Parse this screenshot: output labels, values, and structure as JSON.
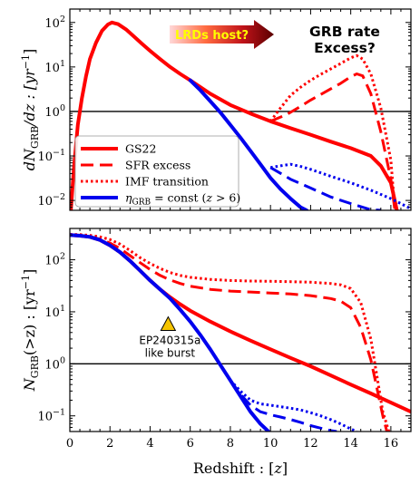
{
  "colors": {
    "red": "#ff0000",
    "blue": "#0000ee",
    "black": "#000000",
    "triangle": "#f5c400"
  },
  "chart_data": [
    {
      "type": "line",
      "panel": "top",
      "ylabel": "dN_GRB/dz : [yr^-1]",
      "ylabel_parts": {
        "main": "dN",
        "sub": "GRB",
        "rest": "/dz : [yr",
        "sup": "−1",
        "end": "]"
      },
      "yscale": "log",
      "xlim": [
        0,
        17
      ],
      "ylim": [
        0.006,
        200
      ],
      "yticks": [
        {
          "value": 0.01,
          "base": "10",
          "exp": "−2"
        },
        {
          "value": 0.1,
          "base": "10",
          "exp": "−1"
        },
        {
          "value": 1,
          "base": "10",
          "exp": "0"
        },
        {
          "value": 10,
          "base": "10",
          "exp": "1"
        },
        {
          "value": 100,
          "base": "10",
          "exp": "2"
        }
      ],
      "hline": 1,
      "annotations": {
        "arrow_label": "LRDs host?",
        "question_line1": "GRB rate",
        "question_line2": "Excess?"
      },
      "legend": [
        {
          "label": "GS22",
          "color": "#ff0000",
          "style": "solid"
        },
        {
          "label": "SFR excess",
          "color": "#ff0000",
          "style": "dashed"
        },
        {
          "label": "IMF transition",
          "color": "#ff0000",
          "style": "dotted"
        },
        {
          "label": "η_GRB = const (z > 6)",
          "color": "#0000ee",
          "style": "solid",
          "parts": {
            "eta": "η",
            "sub": "GRB",
            "rest": " = const (",
            "z": "z",
            "tail": " > 6)"
          }
        }
      ],
      "series": [
        {
          "name": "GS22",
          "color": "#ff0000",
          "style": "solid",
          "width": 4,
          "x": [
            0.05,
            0.2,
            0.4,
            0.6,
            0.8,
            1.0,
            1.3,
            1.6,
            1.9,
            2.1,
            2.4,
            2.8,
            3.2,
            3.6,
            4.0,
            4.5,
            5.0,
            5.5,
            6.0,
            7.0,
            8.0,
            9.0,
            10.0,
            11.0,
            12.0,
            13.0,
            14.0,
            15.0,
            15.5,
            16.0,
            16.3
          ],
          "y": [
            0.006,
            0.05,
            0.5,
            2,
            6,
            15,
            35,
            65,
            90,
            100,
            92,
            70,
            48,
            33,
            23,
            15,
            10,
            7,
            5,
            2.5,
            1.4,
            0.9,
            0.6,
            0.42,
            0.3,
            0.21,
            0.15,
            0.1,
            0.06,
            0.025,
            0.006
          ]
        },
        {
          "name": "SFR excess",
          "color": "#ff0000",
          "style": "dashed",
          "width": 3,
          "x": [
            10,
            10.8,
            11.5,
            12.0,
            12.5,
            13.0,
            13.5,
            14.0,
            14.3,
            14.6,
            15.0,
            15.5,
            16.0,
            16.2
          ],
          "y": [
            0.6,
            0.85,
            1.3,
            1.8,
            2.4,
            3.2,
            4.3,
            6,
            7,
            6.3,
            2.5,
            0.35,
            0.03,
            0.006
          ]
        },
        {
          "name": "IMF transition",
          "color": "#ff0000",
          "style": "dotted",
          "width": 3,
          "x": [
            10,
            10.5,
            11.0,
            11.5,
            12.0,
            12.5,
            13.0,
            13.5,
            14.0,
            14.3,
            14.6,
            15.0,
            15.5,
            16.0,
            16.2
          ],
          "y": [
            0.6,
            1.2,
            2.3,
            3.5,
            5,
            6.8,
            9,
            12,
            16,
            18,
            15,
            7,
            1.2,
            0.08,
            0.006
          ]
        },
        {
          "name": "η_GRB = const (z > 6)",
          "color": "#0000ee",
          "style": "solid",
          "width": 4,
          "x": [
            6.0,
            6.5,
            7.0,
            7.5,
            8.0,
            8.5,
            9.0,
            9.5,
            10.0,
            10.5,
            11.0,
            11.5,
            11.8
          ],
          "y": [
            5,
            3,
            1.7,
            0.95,
            0.5,
            0.26,
            0.13,
            0.065,
            0.032,
            0.018,
            0.011,
            0.007,
            0.006
          ]
        },
        {
          "name": "blue dashed",
          "color": "#0000ee",
          "style": "dashed",
          "width": 3,
          "x": [
            10,
            11,
            12,
            13,
            14,
            15,
            15.5
          ],
          "y": [
            0.055,
            0.03,
            0.019,
            0.012,
            0.0085,
            0.0062,
            0.006
          ]
        },
        {
          "name": "blue dotted",
          "color": "#0000ee",
          "style": "dotted",
          "width": 3,
          "x": [
            10,
            10.5,
            11.0,
            11.5,
            12,
            13,
            14,
            15,
            16,
            16.5,
            17
          ],
          "y": [
            0.055,
            0.06,
            0.065,
            0.058,
            0.05,
            0.035,
            0.025,
            0.017,
            0.011,
            0.0085,
            0.0065
          ]
        }
      ]
    },
    {
      "type": "line",
      "panel": "bottom",
      "xlabel": "Redshift : [z]",
      "xlabel_parts": {
        "main": "Redshift : [",
        "z": "z",
        "end": "]"
      },
      "ylabel": "N_GRB(>z) : [yr^-1]",
      "ylabel_parts": {
        "main": "N",
        "sub": "GRB",
        "rest": "(>z) : [yr",
        "sup": "−1",
        "end": "]"
      },
      "yscale": "log",
      "xlim": [
        0,
        17
      ],
      "ylim": [
        0.05,
        400
      ],
      "xticks": [
        0,
        2,
        4,
        6,
        8,
        10,
        12,
        14,
        16
      ],
      "yticks": [
        {
          "value": 0.1,
          "base": "10",
          "exp": "−1"
        },
        {
          "value": 1,
          "base": "10",
          "exp": "0"
        },
        {
          "value": 10,
          "base": "10",
          "exp": "1"
        },
        {
          "value": 100,
          "base": "10",
          "exp": "2"
        }
      ],
      "hline": 1,
      "annotations": {
        "burst_line1": "EP240315a",
        "burst_line2": "like burst",
        "burst_point": {
          "x": 4.9,
          "y": 5.8
        }
      },
      "series": [
        {
          "name": "GS22",
          "color": "#ff0000",
          "style": "solid",
          "width": 4,
          "x": [
            0,
            0.5,
            1,
            1.5,
            2,
            2.5,
            3,
            3.5,
            4,
            4.5,
            5,
            5.5,
            6,
            7,
            8,
            9,
            10,
            11,
            12,
            13,
            14,
            15,
            16,
            17
          ],
          "y": [
            300,
            290,
            275,
            240,
            190,
            140,
            95,
            62,
            40,
            27,
            19,
            14,
            10.5,
            6.5,
            4.2,
            2.8,
            1.9,
            1.3,
            0.9,
            0.6,
            0.4,
            0.27,
            0.18,
            0.12
          ]
        },
        {
          "name": "SFR excess",
          "color": "#ff0000",
          "style": "dashed",
          "width": 3,
          "x": [
            0,
            0.5,
            1,
            1.5,
            2,
            2.5,
            3,
            3.5,
            4,
            4.5,
            5,
            5.5,
            6,
            7,
            8,
            9,
            10,
            11,
            12,
            13,
            13.5,
            14,
            14.5,
            15,
            15.3,
            15.6,
            15.8
          ],
          "y": [
            300,
            292,
            278,
            250,
            210,
            165,
            120,
            88,
            65,
            50,
            41,
            35,
            31,
            27,
            25,
            24,
            23,
            22,
            20.5,
            18,
            16,
            12,
            5,
            1.2,
            0.35,
            0.1,
            0.05
          ]
        },
        {
          "name": "IMF transition",
          "color": "#ff0000",
          "style": "dotted",
          "width": 3,
          "x": [
            0,
            0.5,
            1,
            1.5,
            2,
            2.5,
            3,
            3.5,
            4,
            4.5,
            5,
            5.5,
            6,
            7,
            8,
            9,
            10,
            11,
            12,
            13,
            13.5,
            14,
            14.5,
            15,
            15.3,
            15.6,
            15.9
          ],
          "y": [
            310,
            305,
            295,
            275,
            245,
            200,
            150,
            110,
            85,
            68,
            57,
            50,
            46,
            42,
            40,
            39,
            38.5,
            38,
            37,
            35,
            33,
            28,
            15,
            3,
            0.6,
            0.12,
            0.05
          ]
        },
        {
          "name": "η_GRB = const (z > 6)",
          "color": "#0000ee",
          "style": "solid",
          "width": 4,
          "x": [
            0,
            0.5,
            1,
            1.5,
            2,
            2.5,
            3,
            3.5,
            4,
            4.5,
            5,
            5.5,
            6,
            6.5,
            7,
            7.5,
            8,
            8.5,
            9,
            9.5,
            9.9
          ],
          "y": [
            300,
            290,
            275,
            240,
            190,
            140,
            95,
            62,
            40,
            27,
            18,
            11,
            6.5,
            3.6,
            1.9,
            0.95,
            0.48,
            0.24,
            0.12,
            0.07,
            0.05
          ]
        },
        {
          "name": "blue dashed",
          "color": "#0000ee",
          "style": "dashed",
          "width": 3,
          "x": [
            8,
            8.5,
            9,
            9.5,
            10,
            10.5,
            11,
            11.5,
            12,
            12.5,
            13,
            13.3
          ],
          "y": [
            0.48,
            0.26,
            0.16,
            0.12,
            0.105,
            0.095,
            0.085,
            0.075,
            0.065,
            0.058,
            0.052,
            0.05
          ]
        },
        {
          "name": "blue dotted",
          "color": "#0000ee",
          "style": "dotted",
          "width": 3,
          "x": [
            8,
            8.5,
            9,
            9.5,
            10,
            10.5,
            11,
            11.5,
            12,
            12.5,
            13,
            13.5,
            14,
            14.3
          ],
          "y": [
            0.48,
            0.3,
            0.2,
            0.17,
            0.16,
            0.15,
            0.14,
            0.13,
            0.115,
            0.1,
            0.085,
            0.07,
            0.056,
            0.05
          ]
        }
      ]
    }
  ]
}
